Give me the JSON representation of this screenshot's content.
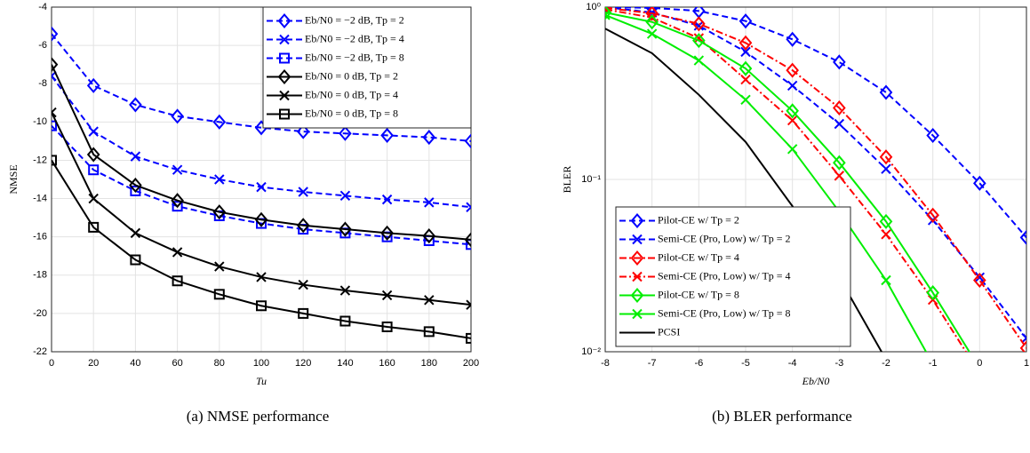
{
  "chart_data": [
    {
      "type": "line",
      "caption": "(a) NMSE performance",
      "xlabel": "Tu",
      "ylabel": "NMSE",
      "x": [
        0,
        20,
        40,
        60,
        80,
        100,
        120,
        140,
        160,
        180,
        200
      ],
      "xlim": [
        0,
        200
      ],
      "xticks": [
        0,
        20,
        40,
        60,
        80,
        100,
        120,
        140,
        160,
        180,
        200
      ],
      "ylim": [
        -22,
        -4
      ],
      "yticks": [
        -22,
        -20,
        -18,
        -16,
        -14,
        -12,
        -10,
        -8,
        -6,
        -4
      ],
      "grid": true,
      "log_y": false,
      "legend": "upper right",
      "series": [
        {
          "name": "Eb/N0 = −2 dB, Tp = 2",
          "color": "#0000ff",
          "dash": "dashed",
          "marker": "diamond",
          "values": [
            -5.4,
            -8.1,
            -9.1,
            -9.7,
            -10.0,
            -10.3,
            -10.5,
            -10.6,
            -10.7,
            -10.8,
            -11.0
          ]
        },
        {
          "name": "Eb/N0 = −2 dB, Tp = 4",
          "color": "#0000ff",
          "dash": "dashed",
          "marker": "x",
          "values": [
            -7.6,
            -10.5,
            -11.8,
            -12.5,
            -13.0,
            -13.4,
            -13.65,
            -13.85,
            -14.05,
            -14.2,
            -14.45
          ]
        },
        {
          "name": "Eb/N0 = −2 dB, Tp = 8",
          "color": "#0000ff",
          "dash": "dashed",
          "marker": "square",
          "values": [
            -10.2,
            -12.5,
            -13.6,
            -14.4,
            -14.9,
            -15.3,
            -15.6,
            -15.8,
            -16.0,
            -16.2,
            -16.4
          ]
        },
        {
          "name": "Eb/N0 = 0 dB, Tp = 2",
          "color": "#000000",
          "dash": "solid",
          "marker": "diamond",
          "values": [
            -7.0,
            -11.7,
            -13.3,
            -14.1,
            -14.7,
            -15.1,
            -15.4,
            -15.6,
            -15.8,
            -15.95,
            -16.15
          ]
        },
        {
          "name": "Eb/N0 = 0 dB, Tp = 4",
          "color": "#000000",
          "dash": "solid",
          "marker": "x",
          "values": [
            -9.5,
            -14.0,
            -15.8,
            -16.8,
            -17.55,
            -18.1,
            -18.5,
            -18.8,
            -19.05,
            -19.3,
            -19.55
          ]
        },
        {
          "name": "Eb/N0 = 0 dB, Tp = 8",
          "color": "#000000",
          "dash": "solid",
          "marker": "square",
          "values": [
            -12.0,
            -15.5,
            -17.2,
            -18.3,
            -19.0,
            -19.6,
            -20.0,
            -20.4,
            -20.7,
            -20.95,
            -21.3
          ]
        }
      ]
    },
    {
      "type": "line",
      "caption": "(b) BLER performance",
      "xlabel": "Eb/N0",
      "ylabel": "BLER",
      "x": [
        -8,
        -7,
        -6,
        -5,
        -4,
        -3,
        -2,
        -1,
        0,
        1
      ],
      "xlim": [
        -8,
        1
      ],
      "xticks": [
        -8,
        -7,
        -6,
        -5,
        -4,
        -3,
        -2,
        -1,
        0,
        1
      ],
      "ylim": [
        0.01,
        1
      ],
      "yticks": [
        {
          "value": 0.01,
          "label": "10⁻²"
        },
        {
          "value": 0.1,
          "label": "10⁻¹"
        },
        {
          "value": 1,
          "label": "10⁰"
        }
      ],
      "grid": true,
      "log_y": true,
      "legend": "lower left",
      "series": [
        {
          "name": "Pilot-CE w/ Tp = 2",
          "color": "#0000ff",
          "dash": "dashed",
          "marker": "diamond",
          "values": [
            1.0,
            0.99,
            0.95,
            0.83,
            0.65,
            0.48,
            0.32,
            0.18,
            0.095,
            0.046
          ]
        },
        {
          "name": "Semi-CE (Pro, Low) w/ Tp = 2",
          "color": "#0000ff",
          "dash": "dashed",
          "marker": "x",
          "values": [
            1.0,
            0.93,
            0.78,
            0.55,
            0.35,
            0.21,
            0.115,
            0.058,
            0.027,
            0.012
          ]
        },
        {
          "name": "Pilot-CE w/ Tp = 4",
          "color": "#ff0000",
          "dash": "dashdot",
          "marker": "diamond",
          "values": [
            0.99,
            0.92,
            0.8,
            0.62,
            0.43,
            0.26,
            0.135,
            0.062,
            0.026,
            0.0105
          ]
        },
        {
          "name": "Semi-CE (Pro, Low) w/ Tp = 4",
          "color": "#ff0000",
          "dash": "dashdot",
          "marker": "x",
          "values": [
            0.97,
            0.87,
            0.66,
            0.38,
            0.22,
            0.105,
            0.048,
            0.02,
            0.0075,
            null
          ]
        },
        {
          "name": "Pilot-CE w/ Tp = 8",
          "color": "#00ee00",
          "dash": "solid",
          "marker": "diamond",
          "values": [
            0.93,
            0.82,
            0.64,
            0.44,
            0.25,
            0.125,
            0.057,
            0.022,
            0.008,
            null
          ]
        },
        {
          "name": "Semi-CE (Pro, Low) w/ Tp = 8",
          "color": "#00ee00",
          "dash": "solid",
          "marker": "x",
          "values": [
            0.9,
            0.7,
            0.49,
            0.29,
            0.15,
            0.065,
            0.026,
            0.0085,
            null,
            null
          ]
        },
        {
          "name": "PCSI",
          "color": "#000000",
          "dash": "solid",
          "marker": "none",
          "values": [
            0.75,
            0.54,
            0.31,
            0.165,
            0.07,
            0.027,
            0.009,
            null,
            null,
            null
          ]
        }
      ]
    }
  ]
}
